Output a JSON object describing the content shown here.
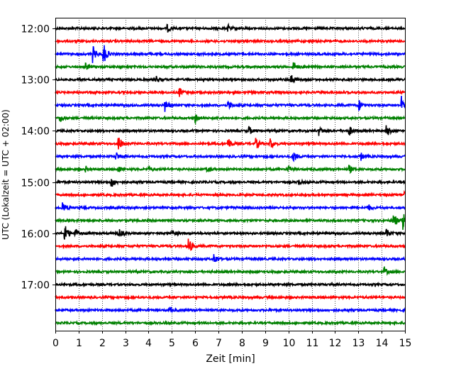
{
  "chart_data": {
    "type": "line",
    "title": "",
    "xlabel": "Zeit  [min]",
    "ylabel": "UTC (Lokalzeit = UTC + 02:00)",
    "xlim": [
      0,
      15
    ],
    "x_ticks": [
      "0",
      "1",
      "2",
      "3",
      "4",
      "5",
      "6",
      "7",
      "8",
      "9",
      "10",
      "11",
      "12",
      "13",
      "14",
      "15"
    ],
    "y_ticks": [
      "12:00",
      "13:00",
      "14:00",
      "15:00",
      "16:00",
      "17:00"
    ],
    "grid": "vertical dotted",
    "colors": [
      "#000000",
      "#ff0000",
      "#0000ff",
      "#008000"
    ],
    "series": [
      {
        "start": "12:00",
        "color": "#000000",
        "events": [
          [
            4.8,
            0.4
          ],
          [
            7.4,
            0.35
          ]
        ]
      },
      {
        "start": "12:15",
        "color": "#ff0000",
        "events": []
      },
      {
        "start": "12:30",
        "color": "#0000ff",
        "events": [
          [
            1.6,
            0.9
          ],
          [
            2.05,
            1.4
          ]
        ]
      },
      {
        "start": "12:45",
        "color": "#008000",
        "events": [
          [
            1.3,
            0.4
          ],
          [
            10.2,
            0.6
          ]
        ]
      },
      {
        "start": "13:00",
        "color": "#000000",
        "events": [
          [
            4.3,
            0.45
          ],
          [
            10.1,
            0.6
          ]
        ]
      },
      {
        "start": "13:15",
        "color": "#ff0000",
        "events": [
          [
            5.3,
            0.55
          ]
        ]
      },
      {
        "start": "13:30",
        "color": "#0000ff",
        "events": [
          [
            4.7,
            0.6
          ],
          [
            7.4,
            0.5
          ],
          [
            13.0,
            0.65
          ],
          [
            14.85,
            1.0
          ]
        ]
      },
      {
        "start": "13:45",
        "color": "#008000",
        "events": [
          [
            0.2,
            0.5
          ],
          [
            6.0,
            0.55
          ]
        ]
      },
      {
        "start": "14:00",
        "color": "#000000",
        "events": [
          [
            8.3,
            0.45
          ],
          [
            11.3,
            0.45
          ],
          [
            12.6,
            0.55
          ],
          [
            14.2,
            0.7
          ]
        ]
      },
      {
        "start": "14:15",
        "color": "#ff0000",
        "events": [
          [
            2.7,
            0.9
          ],
          [
            7.4,
            0.7
          ],
          [
            8.6,
            0.6
          ],
          [
            9.2,
            0.7
          ]
        ]
      },
      {
        "start": "14:30",
        "color": "#0000ff",
        "events": [
          [
            2.6,
            0.5
          ],
          [
            10.2,
            0.7
          ],
          [
            13.1,
            0.4
          ]
        ]
      },
      {
        "start": "14:45",
        "color": "#008000",
        "events": [
          [
            1.3,
            0.3
          ],
          [
            2.7,
            0.4
          ],
          [
            4.0,
            0.35
          ],
          [
            6.5,
            0.35
          ],
          [
            10.0,
            0.35
          ],
          [
            12.6,
            0.45
          ]
        ]
      },
      {
        "start": "15:00",
        "color": "#000000",
        "events": [
          [
            2.4,
            0.6
          ],
          [
            10.4,
            0.35
          ]
        ]
      },
      {
        "start": "15:15",
        "color": "#ff0000",
        "events": [
          [
            14.95,
            0.7
          ]
        ]
      },
      {
        "start": "15:30",
        "color": "#0000ff",
        "events": [
          [
            0.3,
            0.7
          ],
          [
            13.4,
            0.4
          ]
        ]
      },
      {
        "start": "15:45",
        "color": "#008000",
        "events": [
          [
            14.5,
            0.9
          ],
          [
            14.9,
            1.0
          ]
        ]
      },
      {
        "start": "16:00",
        "color": "#000000",
        "events": [
          [
            0.4,
            1.2
          ],
          [
            0.85,
            0.5
          ],
          [
            2.7,
            0.6
          ],
          [
            5.0,
            0.4
          ],
          [
            14.2,
            0.55
          ]
        ]
      },
      {
        "start": "16:15",
        "color": "#ff0000",
        "events": [
          [
            5.7,
            1.0
          ]
        ]
      },
      {
        "start": "16:30",
        "color": "#0000ff",
        "events": [
          [
            6.8,
            0.65
          ]
        ]
      },
      {
        "start": "16:45",
        "color": "#008000",
        "events": [
          [
            14.1,
            0.5
          ]
        ]
      },
      {
        "start": "17:00",
        "color": "#000000",
        "events": []
      },
      {
        "start": "17:15",
        "color": "#ff0000",
        "events": []
      },
      {
        "start": "17:30",
        "color": "#0000ff",
        "events": [
          [
            4.9,
            0.3
          ]
        ]
      },
      {
        "start": "17:45",
        "color": "#008000",
        "events": []
      }
    ]
  }
}
